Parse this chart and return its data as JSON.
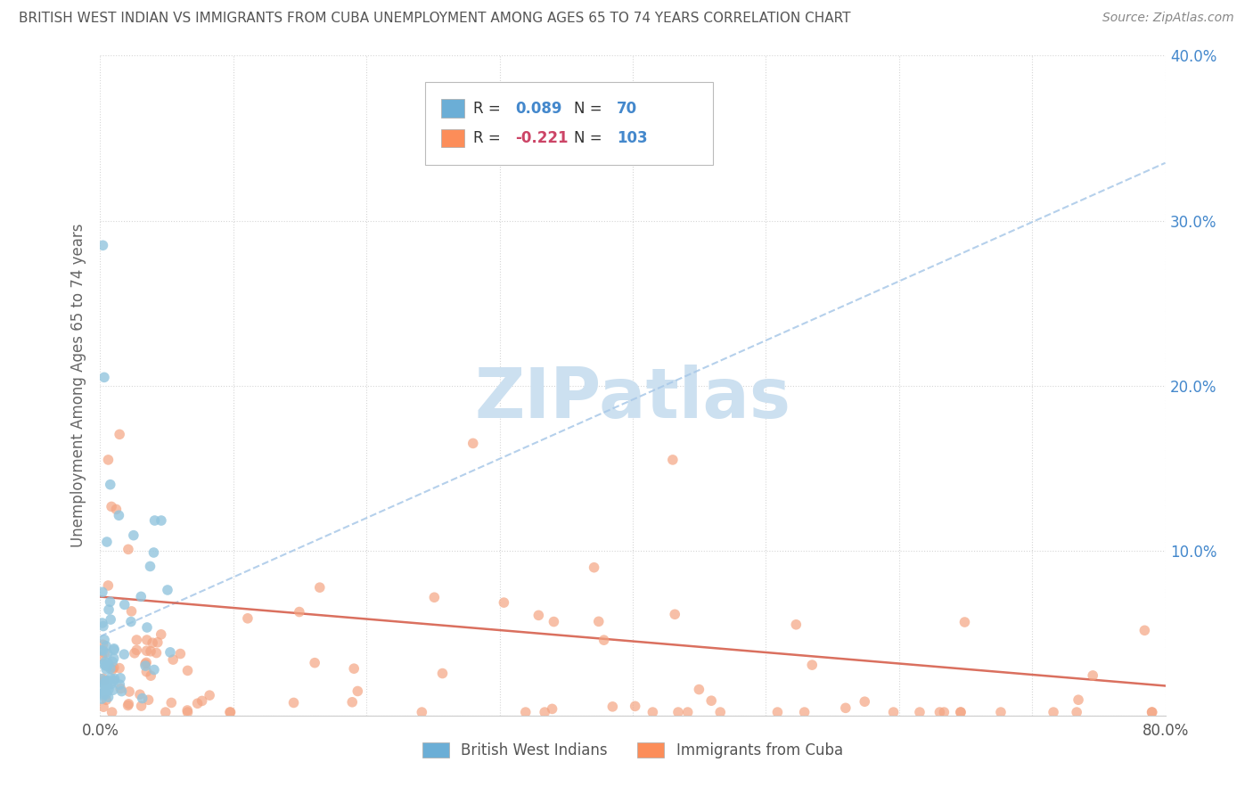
{
  "title": "BRITISH WEST INDIAN VS IMMIGRANTS FROM CUBA UNEMPLOYMENT AMONG AGES 65 TO 74 YEARS CORRELATION CHART",
  "source": "Source: ZipAtlas.com",
  "ylabel": "Unemployment Among Ages 65 to 74 years",
  "xlim": [
    0.0,
    0.8
  ],
  "ylim": [
    0.0,
    0.4
  ],
  "xtick_positions": [
    0.0,
    0.8
  ],
  "xtick_labels": [
    "0.0%",
    "80.0%"
  ],
  "ytick_positions": [
    0.0,
    0.1,
    0.2,
    0.3,
    0.4
  ],
  "ytick_labels_right": [
    "",
    "10.0%",
    "20.0%",
    "30.0%",
    "40.0%"
  ],
  "color_blue": "#92c5de",
  "color_pink": "#f4a582",
  "color_blue_line": "#a8c8e8",
  "color_pink_line": "#d6604d",
  "watermark": "ZIPatlas",
  "watermark_color": "#cce0f0",
  "background_color": "#ffffff",
  "grid_color": "#cccccc",
  "title_color": "#555555",
  "right_tick_color": "#4488cc",
  "legend_blue_color": "#6baed6",
  "legend_pink_color": "#fc8d59",
  "legend_R1": "0.089",
  "legend_N1": "70",
  "legend_R2": "-0.221",
  "legend_N2": "103",
  "blue_trend_x": [
    0.0,
    0.8
  ],
  "blue_trend_y": [
    0.048,
    0.335
  ],
  "pink_trend_x": [
    0.0,
    0.8
  ],
  "pink_trend_y": [
    0.072,
    0.018
  ]
}
